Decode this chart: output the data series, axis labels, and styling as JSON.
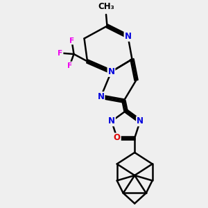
{
  "bg_color": "#efefef",
  "bond_color": "#000000",
  "bond_width": 1.8,
  "atom_colors": {
    "N": "#0000dd",
    "O": "#dd0000",
    "F": "#ee00ee",
    "C": "#000000"
  },
  "font_size_atom": 8.5,
  "font_size_sub": 7.5,
  "font_size_methyl": 8.5
}
